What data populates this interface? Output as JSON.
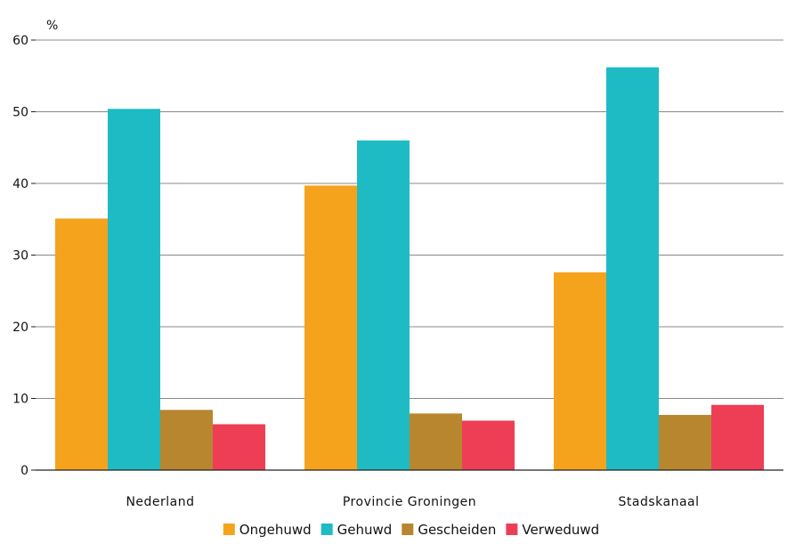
{
  "chart_data": {
    "type": "bar",
    "unit_label": "%",
    "categories": [
      "Nederland",
      "Provincie Groningen",
      "Stadskanaal"
    ],
    "series": [
      {
        "name": "Ongehuwd",
        "color": "#f5a31d",
        "values": [
          35.1,
          39.7,
          27.6
        ]
      },
      {
        "name": "Gehuwd",
        "color": "#1ebbc4",
        "values": [
          50.4,
          46.0,
          56.2
        ]
      },
      {
        "name": "Gescheiden",
        "color": "#b8862e",
        "values": [
          8.4,
          7.9,
          7.7
        ]
      },
      {
        "name": "Verweduwd",
        "color": "#ee3e56",
        "values": [
          6.4,
          6.9,
          9.1
        ]
      }
    ],
    "ylim": [
      0,
      60
    ],
    "yticks": [
      0,
      10,
      20,
      30,
      40,
      50,
      60
    ],
    "grid": true,
    "legend_position": "bottom"
  }
}
